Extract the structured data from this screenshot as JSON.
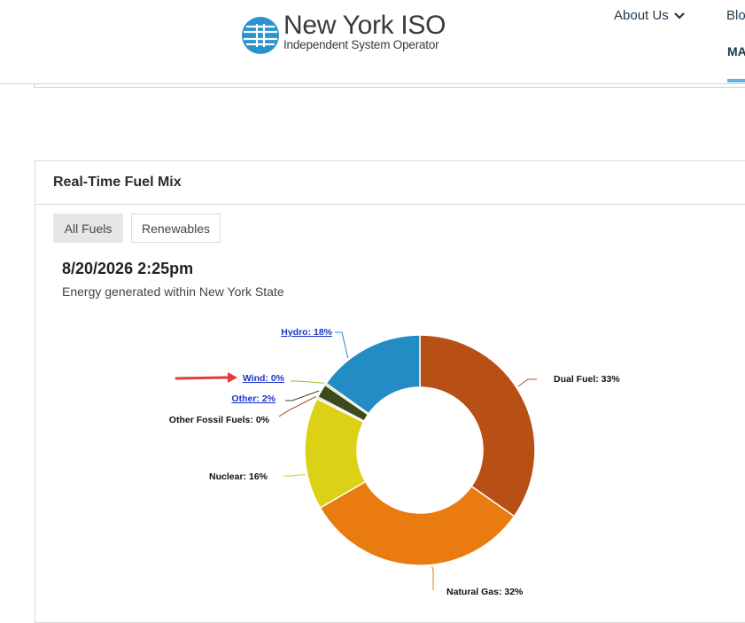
{
  "header": {
    "logo_title": "New York ISO",
    "logo_subtitle": "Independent System Operator",
    "nav_about": "About Us",
    "nav_blog": "Blo",
    "nav_ma": "MA"
  },
  "panel": {
    "title": "Real-Time Fuel Mix",
    "tabs": [
      {
        "label": "All Fuels",
        "active": true
      },
      {
        "label": "Renewables",
        "active": false
      }
    ],
    "timestamp": "8/20/2026 2:25pm",
    "subtitle": "Energy generated within New York State"
  },
  "chart_data": {
    "type": "pie",
    "donut": true,
    "title": "",
    "slices": [
      {
        "label": "Dual Fuel: 33%",
        "name": "Dual Fuel",
        "value": 33,
        "color": "#b84f15",
        "link": false
      },
      {
        "label": "Natural Gas: 32%",
        "name": "Natural Gas",
        "value": 32,
        "color": "#e97b10",
        "link": false
      },
      {
        "label": "Nuclear: 16%",
        "name": "Nuclear",
        "value": 16,
        "color": "#dcd114",
        "link": false
      },
      {
        "label": "Other Fossil Fuels: 0%",
        "name": "Other Fossil Fuels",
        "value": 0,
        "color": "#9a3f18",
        "link": false
      },
      {
        "label": "Other: 2%",
        "name": "Other",
        "value": 2,
        "color": "#3d4a1c",
        "link": true
      },
      {
        "label": "Wind: 0%",
        "name": "Wind",
        "value": 0,
        "color": "#a8b22a",
        "link": true
      },
      {
        "label": "Hydro: 18%",
        "name": "Hydro",
        "value": 18,
        "color": "#238cc4",
        "link": true
      }
    ],
    "annotation": "red arrow pointing to Wind: 0%"
  }
}
